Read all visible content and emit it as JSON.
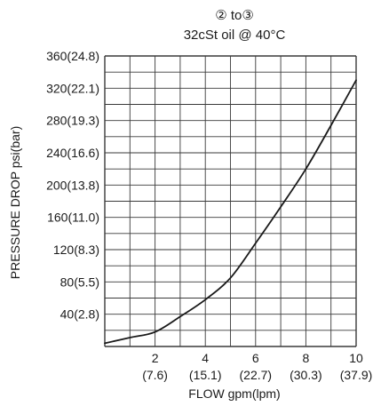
{
  "chart_data": {
    "type": "line",
    "title_line1": "② to③",
    "title_line2": "32cSt oil @ 40°C",
    "xlabel": "FLOW gpm(lpm)",
    "ylabel": "PRESSURE DROP psi(bar)",
    "xlim": [
      0,
      10
    ],
    "ylim": [
      0,
      360
    ],
    "grid": true,
    "x_grid_step": 1,
    "y_grid_step": 20,
    "x_ticks": [
      {
        "value": 2,
        "label": "2",
        "sublabel": "(7.6)"
      },
      {
        "value": 4,
        "label": "4",
        "sublabel": "(15.1)"
      },
      {
        "value": 6,
        "label": "6",
        "sublabel": "(22.7)"
      },
      {
        "value": 8,
        "label": "8",
        "sublabel": "(30.3)"
      },
      {
        "value": 10,
        "label": "10",
        "sublabel": "(37.9)"
      }
    ],
    "y_ticks": [
      {
        "value": 40,
        "label": "40(2.8)"
      },
      {
        "value": 80,
        "label": "80(5.5)"
      },
      {
        "value": 120,
        "label": "120(8.3)"
      },
      {
        "value": 160,
        "label": "160(11.0)"
      },
      {
        "value": 200,
        "label": "200(13.8)"
      },
      {
        "value": 240,
        "label": "240(16.6)"
      },
      {
        "value": 280,
        "label": "280(19.3)"
      },
      {
        "value": 320,
        "label": "320(22.1)"
      },
      {
        "value": 360,
        "label": "360(24.8)"
      }
    ],
    "series": [
      {
        "x": [
          0,
          1,
          2,
          3,
          4,
          5,
          6,
          7,
          8,
          9,
          10
        ],
        "y": [
          4,
          11,
          18,
          37,
          58,
          85,
          128,
          173,
          220,
          274,
          330
        ]
      }
    ],
    "line_color": "#1a1a1a",
    "grid_color": "#3a3a3a"
  }
}
